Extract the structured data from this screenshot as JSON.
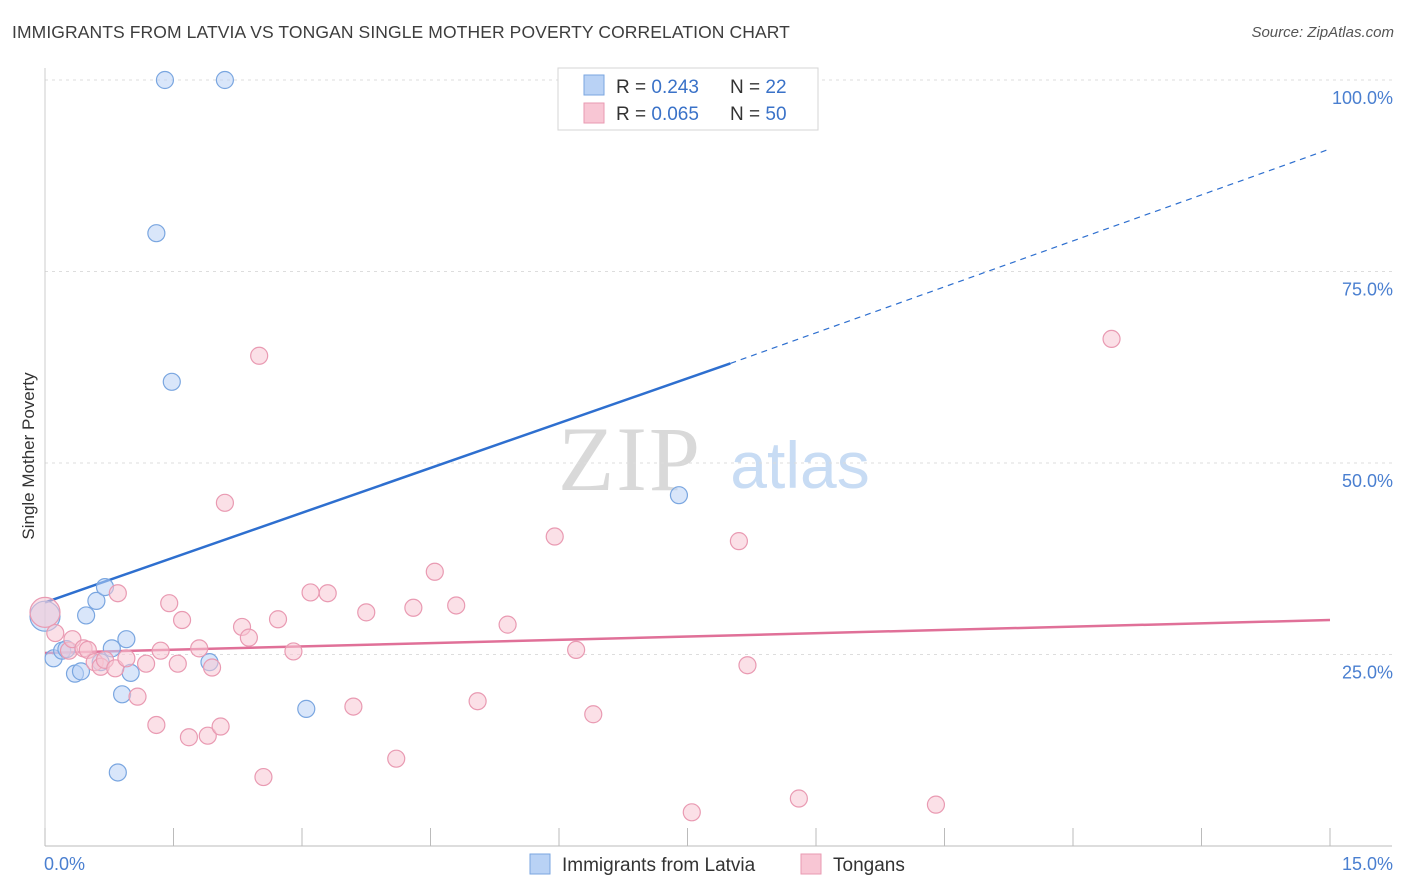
{
  "header": {
    "title": "IMMIGRANTS FROM LATVIA VS TONGAN SINGLE MOTHER POVERTY CORRELATION CHART",
    "source": "Source: ZipAtlas.com"
  },
  "watermark": {
    "zip": "ZIP",
    "atlas": "atlas"
  },
  "colors": {
    "latvia_fill": "#b9d2f5",
    "latvia_stroke": "#7aa6e0",
    "latvia_line": "#2e6fcf",
    "tongan_fill": "#f8c6d4",
    "tongan_stroke": "#e99ab2",
    "tongan_line": "#e07098",
    "axis_text": "#4a7fd0",
    "grid": "#dddddd"
  },
  "legend": {
    "rows": [
      {
        "r_label": "R = ",
        "r_value": "0.243",
        "n_label": "N = ",
        "n_value": "22"
      },
      {
        "r_label": "R = ",
        "r_value": "0.065",
        "n_label": "N = ",
        "n_value": "50"
      }
    ]
  },
  "chart_data": {
    "type": "scatter",
    "title": "IMMIGRANTS FROM LATVIA VS TONGAN SINGLE MOTHER POVERTY CORRELATION CHART",
    "xlabel": "",
    "ylabel": "Single Mother Poverty",
    "xlim": [
      0,
      15
    ],
    "ylim": [
      0,
      100
    ],
    "x_tick_labels": [
      "0.0%",
      "15.0%"
    ],
    "y_ticks": [
      {
        "value": 100,
        "label": "100.0%"
      },
      {
        "value": 75,
        "label": "75.0%"
      },
      {
        "value": 50,
        "label": "50.0%"
      },
      {
        "value": 25,
        "label": "25.0%"
      }
    ],
    "grid": true,
    "legend_position": "top-center",
    "series": [
      {
        "name": "Immigrants from Latvia",
        "color": "#b9d2f5",
        "points": [
          [
            0.0,
            30.0
          ],
          [
            0.1,
            24.5
          ],
          [
            0.2,
            25.5
          ],
          [
            0.25,
            25.7
          ],
          [
            0.35,
            22.5
          ],
          [
            0.42,
            22.8
          ],
          [
            0.48,
            30.1
          ],
          [
            0.6,
            32.0
          ],
          [
            0.65,
            24.0
          ],
          [
            0.7,
            33.8
          ],
          [
            0.78,
            25.8
          ],
          [
            0.9,
            19.8
          ],
          [
            0.95,
            27.0
          ],
          [
            1.0,
            22.6
          ],
          [
            0.85,
            9.6
          ],
          [
            1.4,
            100
          ],
          [
            2.1,
            100
          ],
          [
            1.3,
            80.0
          ],
          [
            1.48,
            60.6
          ],
          [
            1.92,
            24.0
          ],
          [
            3.05,
            17.9
          ],
          [
            7.4,
            45.8
          ]
        ],
        "trend": {
          "x0": 0.0,
          "y0": 31.8,
          "x1": 8.0,
          "y1": 63.0,
          "dashed_to_x": 15.0,
          "dashed_to_y": 91.0
        }
      },
      {
        "name": "Tongans",
        "color": "#f8c6d4",
        "points": [
          [
            0.0,
            30.5
          ],
          [
            0.12,
            27.8
          ],
          [
            0.28,
            25.5
          ],
          [
            0.32,
            27.0
          ],
          [
            0.45,
            25.8
          ],
          [
            0.5,
            25.6
          ],
          [
            0.58,
            24.0
          ],
          [
            0.65,
            23.4
          ],
          [
            0.7,
            24.3
          ],
          [
            0.82,
            23.2
          ],
          [
            0.85,
            33.0
          ],
          [
            0.95,
            24.5
          ],
          [
            1.08,
            19.5
          ],
          [
            1.18,
            23.8
          ],
          [
            1.3,
            15.8
          ],
          [
            1.35,
            25.5
          ],
          [
            1.45,
            31.7
          ],
          [
            1.55,
            23.8
          ],
          [
            1.6,
            29.5
          ],
          [
            1.68,
            14.2
          ],
          [
            1.8,
            25.8
          ],
          [
            1.9,
            14.4
          ],
          [
            1.95,
            23.3
          ],
          [
            2.05,
            15.6
          ],
          [
            2.1,
            44.8
          ],
          [
            2.3,
            28.6
          ],
          [
            2.38,
            27.2
          ],
          [
            2.5,
            64.0
          ],
          [
            2.55,
            9.0
          ],
          [
            2.72,
            29.6
          ],
          [
            2.9,
            25.4
          ],
          [
            3.1,
            33.1
          ],
          [
            3.3,
            33.0
          ],
          [
            3.6,
            18.2
          ],
          [
            3.75,
            30.5
          ],
          [
            4.1,
            11.4
          ],
          [
            4.3,
            31.1
          ],
          [
            4.55,
            35.8
          ],
          [
            4.8,
            31.4
          ],
          [
            5.05,
            18.9
          ],
          [
            5.4,
            28.9
          ],
          [
            5.95,
            40.4
          ],
          [
            6.2,
            25.6
          ],
          [
            6.4,
            17.2
          ],
          [
            7.55,
            4.4
          ],
          [
            8.1,
            39.8
          ],
          [
            8.2,
            23.6
          ],
          [
            8.8,
            6.2
          ],
          [
            10.4,
            5.4
          ],
          [
            12.45,
            66.2
          ]
        ],
        "trend": {
          "x0": 0.0,
          "y0": 25.2,
          "x1": 15.0,
          "y1": 29.5
        }
      }
    ]
  }
}
